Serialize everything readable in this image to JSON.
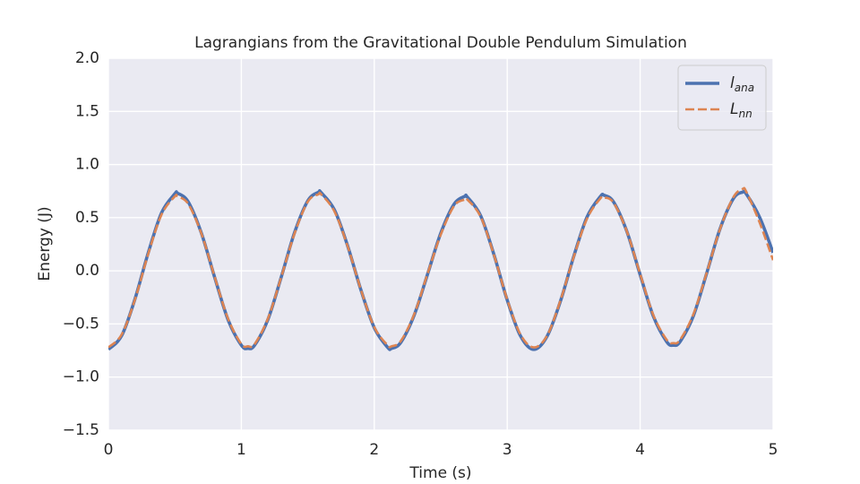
{
  "chart_data": {
    "type": "line",
    "title": "Lagrangians from the Gravitational Double Pendulum Simulation",
    "xlabel": "Time (s)",
    "ylabel": "Energy (J)",
    "x": [
      0,
      0.1,
      0.2,
      0.3,
      0.4,
      0.5,
      0.52,
      0.6,
      0.7,
      0.8,
      0.9,
      1.0,
      1.05,
      1.1,
      1.2,
      1.3,
      1.4,
      1.5,
      1.58,
      1.6,
      1.7,
      1.8,
      1.9,
      2.0,
      2.1,
      2.13,
      2.2,
      2.3,
      2.4,
      2.5,
      2.6,
      2.68,
      2.7,
      2.8,
      2.9,
      3.0,
      3.1,
      3.2,
      3.3,
      3.4,
      3.5,
      3.6,
      3.7,
      3.73,
      3.8,
      3.9,
      4.0,
      4.1,
      4.2,
      4.25,
      4.3,
      4.4,
      4.5,
      4.6,
      4.7,
      4.77,
      4.8,
      4.9,
      5.0
    ],
    "series": [
      {
        "name": "l",
        "name_sub": "ana",
        "color": "#4c72b0",
        "dash": false,
        "values": [
          -0.74,
          -0.61,
          -0.265,
          0.171,
          0.546,
          0.725,
          0.73,
          0.65,
          0.353,
          -0.064,
          -0.46,
          -0.7,
          -0.73,
          -0.7,
          -0.458,
          -0.06,
          0.359,
          0.659,
          0.74,
          0.736,
          0.574,
          0.233,
          -0.182,
          -0.536,
          -0.72,
          -0.73,
          -0.673,
          -0.418,
          -0.035,
          0.354,
          0.626,
          0.7,
          0.694,
          0.519,
          0.153,
          -0.275,
          -0.613,
          -0.74,
          -0.616,
          -0.287,
          0.134,
          0.505,
          0.698,
          0.71,
          0.648,
          0.37,
          -0.037,
          -0.43,
          -0.668,
          -0.7,
          -0.667,
          -0.425,
          -0.024,
          0.392,
          0.677,
          0.74,
          0.72,
          0.5,
          0.17
        ]
      },
      {
        "name": "L",
        "name_sub": "nn",
        "color": "#dd8452",
        "dash": true,
        "values": [
          -0.72,
          -0.6,
          -0.27,
          0.16,
          0.53,
          0.7,
          0.7,
          0.63,
          0.35,
          -0.06,
          -0.45,
          -0.69,
          -0.71,
          -0.69,
          -0.45,
          -0.06,
          0.35,
          0.65,
          0.72,
          0.72,
          0.56,
          0.23,
          -0.18,
          -0.53,
          -0.7,
          -0.71,
          -0.66,
          -0.41,
          -0.03,
          0.34,
          0.61,
          0.67,
          0.67,
          0.51,
          0.15,
          -0.27,
          -0.6,
          -0.72,
          -0.61,
          -0.28,
          0.13,
          0.49,
          0.68,
          0.69,
          0.64,
          0.37,
          -0.03,
          -0.42,
          -0.65,
          -0.68,
          -0.65,
          -0.41,
          -0.02,
          0.39,
          0.69,
          0.77,
          0.74,
          0.45,
          0.1
        ]
      }
    ],
    "xlim": [
      0,
      5
    ],
    "xticks": [
      0,
      1,
      2,
      3,
      4,
      5
    ],
    "ylim": [
      -1.5,
      2.0
    ],
    "yticks": [
      {
        "value": -1.5,
        "label": "−1.5"
      },
      {
        "value": -1.0,
        "label": "−1.0"
      },
      {
        "value": -0.5,
        "label": "−0.5"
      },
      {
        "value": 0,
        "label": "0.0"
      },
      {
        "value": 0.5,
        "label": "0.5"
      },
      {
        "value": 1.0,
        "label": "1.0"
      },
      {
        "value": 1.5,
        "label": "1.5"
      },
      {
        "value": 2.0,
        "label": "2.0"
      }
    ],
    "grid": true,
    "legend": "upper right"
  }
}
